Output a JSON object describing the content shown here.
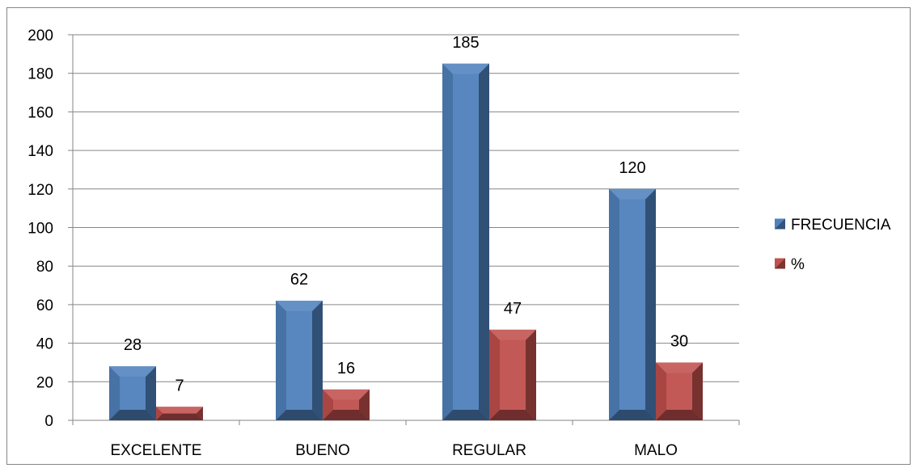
{
  "chart_data": {
    "type": "bar",
    "categories": [
      "EXCELENTE",
      "BUENO",
      "REGULAR",
      "MALO"
    ],
    "series": [
      {
        "name": "FRECUENCIA",
        "values": [
          28,
          62,
          185,
          120
        ],
        "color": "#4F81BD"
      },
      {
        "name": "%",
        "values": [
          7,
          16,
          47,
          30
        ],
        "color": "#C0504D"
      }
    ],
    "title": "",
    "xlabel": "",
    "ylabel": "",
    "ylim": [
      0,
      200
    ],
    "yticks": [
      0,
      20,
      40,
      60,
      80,
      100,
      120,
      140,
      160,
      180,
      200
    ],
    "grid": true,
    "legend_position": "right",
    "style": "3d-bevel"
  }
}
